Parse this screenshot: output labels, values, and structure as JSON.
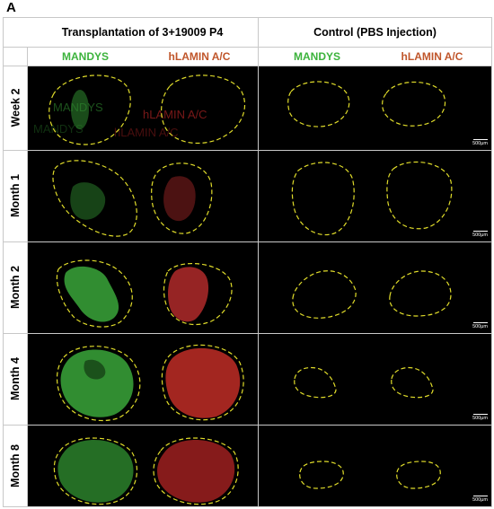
{
  "panel_letter": "A",
  "header": {
    "left": "Transplantation of 3+19009  P4",
    "right": "Control (PBS Injection)"
  },
  "subheader": {
    "left_green": "MANDYS",
    "left_red": "hLAMIN A/C",
    "right_green": "MANDYS",
    "right_red": "hLAMIN A/C"
  },
  "colors": {
    "mandys": "#3cb33c",
    "lamin": "#c0392b",
    "outline": "#e0dc2a"
  },
  "rows": [
    {
      "label": "Week 2"
    },
    {
      "label": "Month 1"
    },
    {
      "label": "Month 2"
    },
    {
      "label": "Month 4"
    },
    {
      "label": "Month 8"
    }
  ],
  "scale_bar": "500μm",
  "week2_overlay": {
    "green_text": "MANDYS",
    "red_text": "hLAMIN A/C"
  }
}
